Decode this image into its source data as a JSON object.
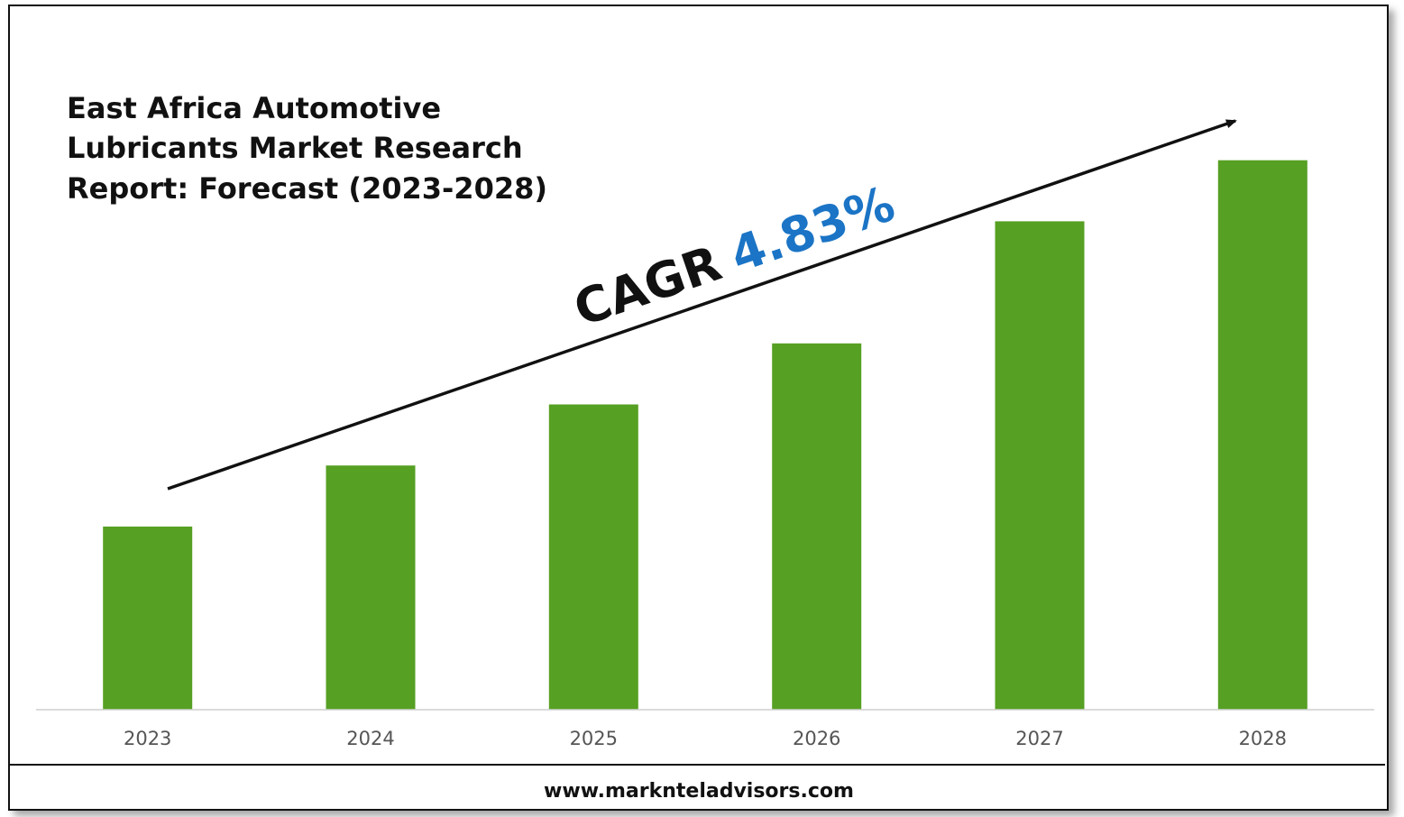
{
  "chart_data": {
    "type": "bar",
    "title": "East Africa Automotive Lubricants Market Research Report: Forecast (2023-2028)",
    "title_lines": [
      "East Africa Automotive",
      "Lubricants Market Research",
      "Report: Forecast (2023-2028)"
    ],
    "categories": [
      "2023",
      "2024",
      "2025",
      "2026",
      "2027",
      "2028"
    ],
    "values": [
      30,
      40,
      50,
      60,
      80,
      90
    ],
    "ylim": [
      0,
      100
    ],
    "xlabel": "",
    "ylabel": "",
    "grid": false,
    "bar_color": "#56a023",
    "annotation": {
      "label": "CAGR",
      "value": "4.83%",
      "label_color": "#111111",
      "value_color": "#1b74c5"
    }
  },
  "footer": {
    "url": "www.marknteladvisors.com"
  }
}
